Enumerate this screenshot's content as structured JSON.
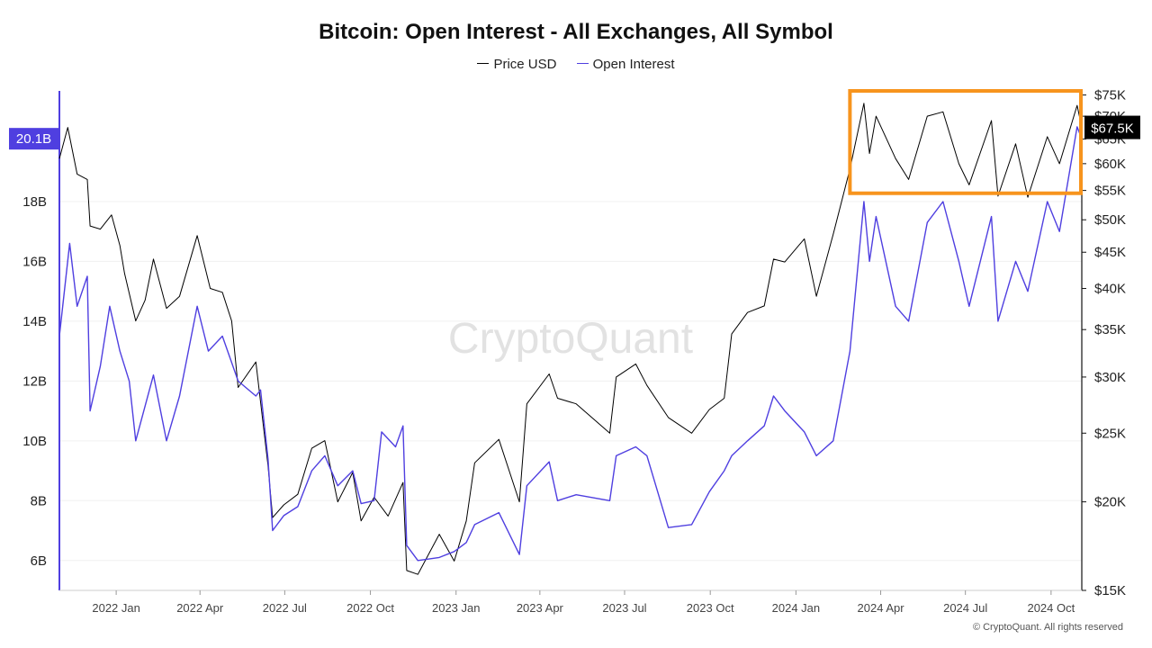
{
  "chart_data": {
    "type": "line",
    "title": "Bitcoin: Open Interest - All Exchanges, All Symbol",
    "legend": {
      "placement": "top-center",
      "entries": [
        "Price USD",
        "Open Interest"
      ]
    },
    "x_axis": {
      "type": "date",
      "range": [
        "2021-11-01",
        "2024-11-03"
      ],
      "ticks": [
        {
          "date": "2022-01-01",
          "label": "2022 Jan"
        },
        {
          "date": "2022-04-01",
          "label": "2022 Apr"
        },
        {
          "date": "2022-07-01",
          "label": "2022 Jul"
        },
        {
          "date": "2022-10-01",
          "label": "2022 Oct"
        },
        {
          "date": "2023-01-01",
          "label": "2023 Jan"
        },
        {
          "date": "2023-04-01",
          "label": "2023 Apr"
        },
        {
          "date": "2023-07-01",
          "label": "2023 Jul"
        },
        {
          "date": "2023-10-01",
          "label": "2023 Oct"
        },
        {
          "date": "2024-01-01",
          "label": "2024 Jan"
        },
        {
          "date": "2024-04-01",
          "label": "2024 Apr"
        },
        {
          "date": "2024-07-01",
          "label": "2024 Jul"
        },
        {
          "date": "2024-10-01",
          "label": "2024 Oct"
        }
      ]
    },
    "y_left": {
      "label": "",
      "scale": "linear",
      "range": [
        5.0,
        21.7
      ],
      "ticks": [
        {
          "value": 6,
          "label": "6B"
        },
        {
          "value": 8,
          "label": "8B"
        },
        {
          "value": 10,
          "label": "10B"
        },
        {
          "value": 12,
          "label": "12B"
        },
        {
          "value": 14,
          "label": "14B"
        },
        {
          "value": 16,
          "label": "16B"
        },
        {
          "value": 18,
          "label": "18B"
        }
      ],
      "current_value_label": {
        "value": 20.1,
        "text": "20.1B"
      }
    },
    "y_right": {
      "label": "",
      "scale": "log",
      "range": [
        15000,
        76000
      ],
      "ticks": [
        {
          "value": 15000,
          "label": "$15K"
        },
        {
          "value": 20000,
          "label": "$20K"
        },
        {
          "value": 25000,
          "label": "$25K"
        },
        {
          "value": 30000,
          "label": "$30K"
        },
        {
          "value": 35000,
          "label": "$35K"
        },
        {
          "value": 40000,
          "label": "$40K"
        },
        {
          "value": 45000,
          "label": "$45K"
        },
        {
          "value": 50000,
          "label": "$50K"
        },
        {
          "value": 55000,
          "label": "$55K"
        },
        {
          "value": 60000,
          "label": "$60K"
        },
        {
          "value": 65000,
          "label": "$65K"
        },
        {
          "value": 70000,
          "label": "$70K"
        },
        {
          "value": 75000,
          "label": "$75K"
        }
      ],
      "current_value_label": {
        "value": 67500,
        "text": "$67.5K"
      }
    },
    "grid": "horizontal",
    "series": [
      {
        "name": "Price USD",
        "axis": "right",
        "color": "#000000",
        "points": [
          [
            "2021-11-01",
            61000
          ],
          [
            "2021-11-10",
            67500
          ],
          [
            "2021-11-20",
            58000
          ],
          [
            "2021-12-01",
            57000
          ],
          [
            "2021-12-04",
            49000
          ],
          [
            "2021-12-15",
            48500
          ],
          [
            "2021-12-27",
            50800
          ],
          [
            "2022-01-05",
            46000
          ],
          [
            "2022-01-10",
            42000
          ],
          [
            "2022-01-22",
            36000
          ],
          [
            "2022-02-01",
            38500
          ],
          [
            "2022-02-10",
            44000
          ],
          [
            "2022-02-24",
            37500
          ],
          [
            "2022-03-10",
            39000
          ],
          [
            "2022-03-29",
            47500
          ],
          [
            "2022-04-12",
            40000
          ],
          [
            "2022-04-25",
            39500
          ],
          [
            "2022-05-05",
            36000
          ],
          [
            "2022-05-12",
            29000
          ],
          [
            "2022-05-31",
            31500
          ],
          [
            "2022-06-13",
            22500
          ],
          [
            "2022-06-18",
            19000
          ],
          [
            "2022-06-30",
            19800
          ],
          [
            "2022-07-15",
            20500
          ],
          [
            "2022-07-30",
            23800
          ],
          [
            "2022-08-13",
            24400
          ],
          [
            "2022-08-27",
            20000
          ],
          [
            "2022-09-12",
            22000
          ],
          [
            "2022-09-21",
            18800
          ],
          [
            "2022-10-05",
            20300
          ],
          [
            "2022-10-20",
            19100
          ],
          [
            "2022-11-05",
            21300
          ],
          [
            "2022-11-09",
            16000
          ],
          [
            "2022-11-21",
            15800
          ],
          [
            "2022-12-14",
            18000
          ],
          [
            "2022-12-30",
            16500
          ],
          [
            "2023-01-12",
            18800
          ],
          [
            "2023-01-21",
            22700
          ],
          [
            "2023-02-16",
            24500
          ],
          [
            "2023-03-10",
            20000
          ],
          [
            "2023-03-18",
            27500
          ],
          [
            "2023-04-11",
            30300
          ],
          [
            "2023-04-20",
            28000
          ],
          [
            "2023-05-10",
            27500
          ],
          [
            "2023-06-15",
            25000
          ],
          [
            "2023-06-22",
            30000
          ],
          [
            "2023-07-13",
            31300
          ],
          [
            "2023-07-25",
            29200
          ],
          [
            "2023-08-17",
            26300
          ],
          [
            "2023-09-11",
            25000
          ],
          [
            "2023-09-30",
            27000
          ],
          [
            "2023-10-16",
            28000
          ],
          [
            "2023-10-24",
            34500
          ],
          [
            "2023-11-10",
            37000
          ],
          [
            "2023-11-28",
            37800
          ],
          [
            "2023-12-08",
            44000
          ],
          [
            "2023-12-20",
            43600
          ],
          [
            "2024-01-10",
            47000
          ],
          [
            "2024-01-23",
            39000
          ],
          [
            "2024-02-10",
            47700
          ],
          [
            "2024-02-28",
            59000
          ],
          [
            "2024-03-14",
            73000
          ],
          [
            "2024-03-20",
            62000
          ],
          [
            "2024-03-27",
            70000
          ],
          [
            "2024-04-17",
            61000
          ],
          [
            "2024-05-01",
            57000
          ],
          [
            "2024-05-21",
            70000
          ],
          [
            "2024-06-07",
            71000
          ],
          [
            "2024-06-24",
            60000
          ],
          [
            "2024-07-05",
            56000
          ],
          [
            "2024-07-29",
            69000
          ],
          [
            "2024-08-05",
            54000
          ],
          [
            "2024-08-24",
            64000
          ],
          [
            "2024-09-06",
            53800
          ],
          [
            "2024-09-27",
            65500
          ],
          [
            "2024-10-10",
            60000
          ],
          [
            "2024-10-29",
            72500
          ],
          [
            "2024-11-03",
            67500
          ]
        ]
      },
      {
        "name": "Open Interest",
        "axis": "left",
        "color": "#4F3FE0",
        "points": [
          [
            "2021-11-01",
            13.5
          ],
          [
            "2021-11-12",
            16.6
          ],
          [
            "2021-11-20",
            14.5
          ],
          [
            "2021-12-01",
            15.5
          ],
          [
            "2021-12-04",
            11.0
          ],
          [
            "2021-12-15",
            12.5
          ],
          [
            "2021-12-25",
            14.5
          ],
          [
            "2022-01-05",
            13.0
          ],
          [
            "2022-01-15",
            12.0
          ],
          [
            "2022-01-22",
            10.0
          ],
          [
            "2022-02-10",
            12.2
          ],
          [
            "2022-02-24",
            10.0
          ],
          [
            "2022-03-10",
            11.5
          ],
          [
            "2022-03-29",
            14.5
          ],
          [
            "2022-04-10",
            13.0
          ],
          [
            "2022-04-25",
            13.5
          ],
          [
            "2022-05-12",
            12.0
          ],
          [
            "2022-05-31",
            11.5
          ],
          [
            "2022-06-05",
            11.7
          ],
          [
            "2022-06-13",
            9.4
          ],
          [
            "2022-06-18",
            7.0
          ],
          [
            "2022-06-30",
            7.5
          ],
          [
            "2022-07-15",
            7.8
          ],
          [
            "2022-07-30",
            9.0
          ],
          [
            "2022-08-13",
            9.5
          ],
          [
            "2022-08-27",
            8.5
          ],
          [
            "2022-09-12",
            9.0
          ],
          [
            "2022-09-21",
            7.9
          ],
          [
            "2022-10-05",
            8.0
          ],
          [
            "2022-10-13",
            10.3
          ],
          [
            "2022-10-28",
            9.8
          ],
          [
            "2022-11-05",
            10.5
          ],
          [
            "2022-11-09",
            6.5
          ],
          [
            "2022-11-21",
            6.0
          ],
          [
            "2022-12-14",
            6.1
          ],
          [
            "2022-12-30",
            6.3
          ],
          [
            "2023-01-12",
            6.6
          ],
          [
            "2023-01-21",
            7.2
          ],
          [
            "2023-02-16",
            7.6
          ],
          [
            "2023-03-10",
            6.2
          ],
          [
            "2023-03-18",
            8.5
          ],
          [
            "2023-04-11",
            9.3
          ],
          [
            "2023-04-20",
            8.0
          ],
          [
            "2023-05-10",
            8.2
          ],
          [
            "2023-06-15",
            8.0
          ],
          [
            "2023-06-22",
            9.5
          ],
          [
            "2023-07-13",
            9.8
          ],
          [
            "2023-07-25",
            9.5
          ],
          [
            "2023-08-17",
            7.1
          ],
          [
            "2023-09-11",
            7.2
          ],
          [
            "2023-09-30",
            8.3
          ],
          [
            "2023-10-16",
            9.0
          ],
          [
            "2023-10-24",
            9.5
          ],
          [
            "2023-11-10",
            10.0
          ],
          [
            "2023-11-28",
            10.5
          ],
          [
            "2023-12-08",
            11.5
          ],
          [
            "2023-12-20",
            11.0
          ],
          [
            "2024-01-10",
            10.3
          ],
          [
            "2024-01-23",
            9.5
          ],
          [
            "2024-02-10",
            10.0
          ],
          [
            "2024-02-28",
            13.0
          ],
          [
            "2024-03-14",
            18.0
          ],
          [
            "2024-03-20",
            16.0
          ],
          [
            "2024-03-27",
            17.5
          ],
          [
            "2024-04-17",
            14.5
          ],
          [
            "2024-05-01",
            14.0
          ],
          [
            "2024-05-21",
            17.3
          ],
          [
            "2024-06-07",
            18.0
          ],
          [
            "2024-06-24",
            16.0
          ],
          [
            "2024-07-05",
            14.5
          ],
          [
            "2024-07-29",
            17.5
          ],
          [
            "2024-08-05",
            14.0
          ],
          [
            "2024-08-24",
            16.0
          ],
          [
            "2024-09-06",
            15.0
          ],
          [
            "2024-09-27",
            18.0
          ],
          [
            "2024-10-10",
            17.0
          ],
          [
            "2024-10-29",
            20.5
          ],
          [
            "2024-11-03",
            20.1
          ]
        ]
      }
    ],
    "annotations": [
      {
        "type": "rectangle",
        "color": "#F7941D",
        "x_range": [
          "2024-02-28",
          "2024-11-03"
        ],
        "y_right_range": [
          54500,
          76000
        ]
      }
    ],
    "watermark": "CryptoQuant",
    "footer": "© CryptoQuant. All rights reserved"
  }
}
